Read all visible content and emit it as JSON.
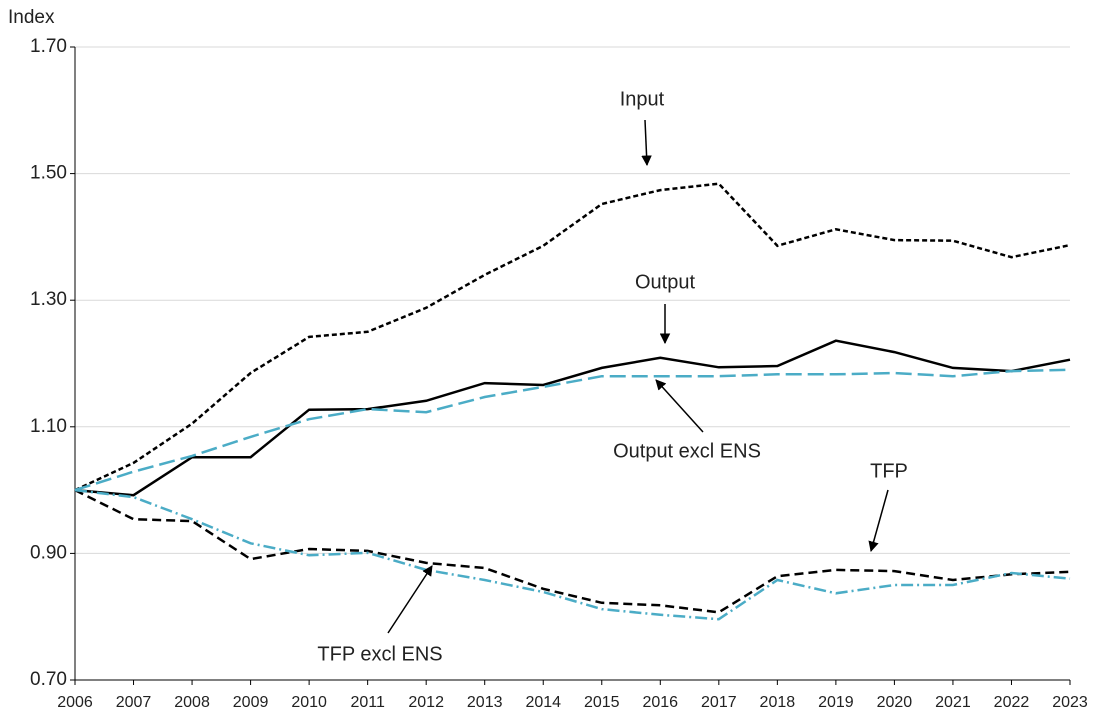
{
  "chart_data": {
    "type": "line",
    "y_label": "Index",
    "categories": [
      "2006",
      "2007",
      "2008",
      "2009",
      "2010",
      "2011",
      "2012",
      "2013",
      "2014",
      "2015",
      "2016",
      "2017",
      "2018",
      "2019",
      "2020",
      "2021",
      "2022",
      "2023"
    ],
    "ylim": [
      0.7,
      1.7
    ],
    "yticks": [
      {
        "value": 0.7,
        "label": "0.70"
      },
      {
        "value": 0.9,
        "label": "0.90"
      },
      {
        "value": 1.1,
        "label": "1.10"
      },
      {
        "value": 1.3,
        "label": "1.30"
      },
      {
        "value": 1.5,
        "label": "1.50"
      },
      {
        "value": 1.7,
        "label": "1.70"
      }
    ],
    "grid": true,
    "series": [
      {
        "name": "Input",
        "color": "#000000",
        "line_style": "dotted",
        "values": [
          1.0,
          1.043,
          1.105,
          1.185,
          1.242,
          1.25,
          1.288,
          1.34,
          1.386,
          1.452,
          1.474,
          1.484,
          1.386,
          1.412,
          1.395,
          1.394,
          1.368,
          1.387
        ]
      },
      {
        "name": "Output",
        "color": "#000000",
        "line_style": "solid",
        "values": [
          1.0,
          0.992,
          1.052,
          1.052,
          1.127,
          1.128,
          1.141,
          1.169,
          1.166,
          1.193,
          1.209,
          1.194,
          1.196,
          1.236,
          1.218,
          1.193,
          1.188,
          1.206
        ]
      },
      {
        "name": "Output excl ENS",
        "color": "#4bacc6",
        "line_style": "long-dashed",
        "values": [
          1.0,
          1.029,
          1.054,
          1.084,
          1.112,
          1.128,
          1.123,
          1.147,
          1.163,
          1.18,
          1.18,
          1.18,
          1.183,
          1.183,
          1.185,
          1.18,
          1.188,
          1.19
        ]
      },
      {
        "name": "TFP",
        "color": "#000000",
        "line_style": "dashed",
        "values": [
          1.0,
          0.954,
          0.951,
          0.891,
          0.907,
          0.904,
          0.885,
          0.877,
          0.844,
          0.822,
          0.818,
          0.807,
          0.864,
          0.874,
          0.872,
          0.858,
          0.867,
          0.871
        ]
      },
      {
        "name": "TFP excl ENS",
        "color": "#4bacc6",
        "line_style": "dash-dot",
        "values": [
          1.0,
          0.989,
          0.954,
          0.916,
          0.897,
          0.901,
          0.874,
          0.858,
          0.839,
          0.812,
          0.803,
          0.796,
          0.858,
          0.837,
          0.85,
          0.85,
          0.869,
          0.86
        ]
      }
    ]
  }
}
